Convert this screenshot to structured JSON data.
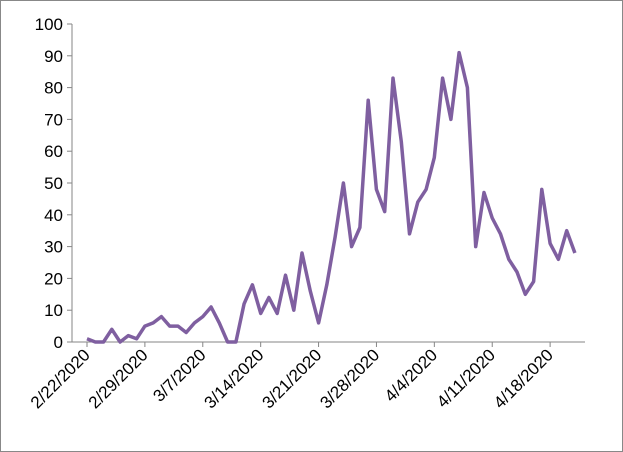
{
  "chart_data": {
    "type": "line",
    "categories": [
      "2/22/2020",
      null,
      null,
      null,
      null,
      null,
      null,
      "2/29/2020",
      null,
      null,
      null,
      null,
      null,
      null,
      "3/7/2020",
      null,
      null,
      null,
      null,
      null,
      null,
      "3/14/2020",
      null,
      null,
      null,
      null,
      null,
      null,
      "3/21/2020",
      null,
      null,
      null,
      null,
      null,
      null,
      "3/28/2020",
      null,
      null,
      null,
      null,
      null,
      null,
      "4/4/2020",
      null,
      null,
      null,
      null,
      null,
      null,
      "4/11/2020",
      null,
      null,
      null,
      null,
      null,
      null,
      "4/18/2020",
      null,
      null,
      null
    ],
    "series": [
      {
        "color": "#7f5fa0",
        "values": [
          1,
          0,
          0,
          4,
          0,
          2,
          1,
          5,
          6,
          8,
          5,
          5,
          3,
          6,
          8,
          11,
          6,
          0,
          0,
          12,
          18,
          9,
          14,
          9,
          21,
          10,
          28,
          16,
          6,
          18,
          33,
          50,
          30,
          36,
          76,
          48,
          41,
          83,
          63,
          34,
          44,
          48,
          58,
          83,
          70,
          91,
          80,
          30,
          47,
          39,
          34,
          26,
          22,
          15,
          19,
          48,
          31,
          26,
          35,
          28
        ]
      }
    ],
    "ylim": [
      0,
      100
    ],
    "yticks": [
      0,
      10,
      20,
      30,
      40,
      50,
      60,
      70,
      80,
      90,
      100
    ],
    "grid": false
  }
}
